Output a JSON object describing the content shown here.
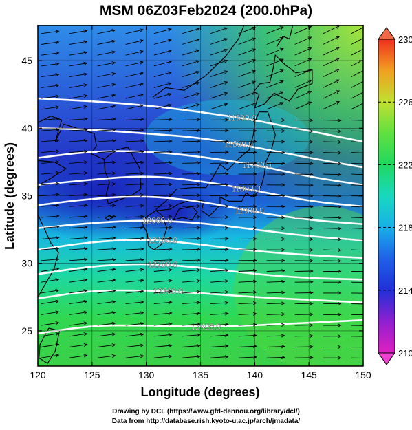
{
  "title": "MSM 06Z03Feb2024 (200.0hPa)",
  "chart_data": {
    "type": "heatmap",
    "title": "MSM 06Z03Feb2024 (200.0hPa)",
    "xlabel": "Longitude (degrees)",
    "ylabel": "Latitude  (degrees)",
    "xlim": [
      120,
      150
    ],
    "ylim": [
      22.4,
      47.6
    ],
    "xticks": [
      "120",
      "125",
      "130",
      "135",
      "140",
      "145",
      "150"
    ],
    "yticks": [
      "25",
      "30",
      "35",
      "40",
      "45"
    ],
    "colorbar": {
      "min": 210,
      "max": 230,
      "ticks": [
        "210",
        "214",
        "218",
        "222",
        "226",
        "230"
      ]
    },
    "contours": [
      {
        "label": "11500.0",
        "label_lon": 138.8,
        "points": [
          [
            120,
            42.2
          ],
          [
            125,
            42.0
          ],
          [
            130,
            41.7
          ],
          [
            135,
            41.2
          ],
          [
            140,
            40.6
          ],
          [
            145,
            39.8
          ],
          [
            150,
            39.0
          ]
        ]
      },
      {
        "label": "11600.0",
        "label_lon": 138.5,
        "points": [
          [
            120,
            40.0
          ],
          [
            125,
            39.9
          ],
          [
            130,
            39.6
          ],
          [
            135,
            39.3
          ],
          [
            140,
            38.6
          ],
          [
            145,
            37.8
          ],
          [
            150,
            37.1
          ]
        ]
      },
      {
        "label": "11700.0",
        "label_lon": 140.2,
        "points": [
          [
            120,
            37.8
          ],
          [
            125,
            38.3
          ],
          [
            130,
            38.3
          ],
          [
            135,
            37.9
          ],
          [
            140,
            37.3
          ],
          [
            145,
            36.4
          ],
          [
            150,
            35.8
          ]
        ]
      },
      {
        "label": "11800.0",
        "label_lon": 139.2,
        "points": [
          [
            120,
            35.8
          ],
          [
            125,
            36.2
          ],
          [
            130,
            36.5
          ],
          [
            135,
            36.1
          ],
          [
            140,
            35.4
          ],
          [
            145,
            34.6
          ],
          [
            150,
            34.2
          ]
        ]
      },
      {
        "label": "11900.0",
        "label_lon": 139.5,
        "points": [
          [
            120,
            34.3
          ],
          [
            125,
            34.8
          ],
          [
            130,
            35.0
          ],
          [
            135,
            34.6
          ],
          [
            140,
            33.8
          ],
          [
            145,
            33.2
          ],
          [
            150,
            32.9
          ]
        ]
      },
      {
        "label": "12000.0",
        "label_lon": 131.0,
        "points": [
          [
            120,
            32.6
          ],
          [
            125,
            33.0
          ],
          [
            130,
            33.2
          ],
          [
            135,
            33.0
          ],
          [
            140,
            32.5
          ],
          [
            145,
            32.0
          ],
          [
            150,
            31.7
          ]
        ]
      },
      {
        "label": "12100.0",
        "label_lon": 131.5,
        "points": [
          [
            120,
            31.0
          ],
          [
            125,
            31.6
          ],
          [
            130,
            31.8
          ],
          [
            135,
            31.4
          ],
          [
            140,
            30.9
          ],
          [
            145,
            30.6
          ],
          [
            150,
            30.4
          ]
        ]
      },
      {
        "label": "12200.0",
        "label_lon": 131.5,
        "points": [
          [
            120,
            29.2
          ],
          [
            125,
            29.8
          ],
          [
            130,
            30.0
          ],
          [
            135,
            29.7
          ],
          [
            140,
            29.2
          ],
          [
            145,
            28.9
          ],
          [
            150,
            28.8
          ]
        ]
      },
      {
        "label": "12300.0",
        "label_lon": 132.0,
        "points": [
          [
            120,
            27.4
          ],
          [
            125,
            28.0
          ],
          [
            130,
            28.0
          ],
          [
            135,
            27.8
          ],
          [
            140,
            27.5
          ],
          [
            145,
            27.3
          ],
          [
            150,
            27.1
          ]
        ]
      },
      {
        "label": "12400.0",
        "label_lon": 135.5,
        "points": [
          [
            120,
            24.8
          ],
          [
            125,
            25.4
          ],
          [
            130,
            25.4
          ],
          [
            135,
            25.3
          ],
          [
            140,
            25.4
          ],
          [
            145,
            25.6
          ],
          [
            150,
            25.8
          ]
        ]
      }
    ],
    "temperature_field_description_colors": {
      "cold": "#1a2fd0",
      "mid": "#17c9e6",
      "warm": "#2fd84a",
      "hot": "#a8e83a"
    }
  },
  "credits": {
    "line1": "Drawing by DCL (https://www.gfd-dennou.org/library/dcl/)",
    "line2": "Data from http://database.rish.kyoto-u.ac.jp/arch/jmadata/"
  }
}
